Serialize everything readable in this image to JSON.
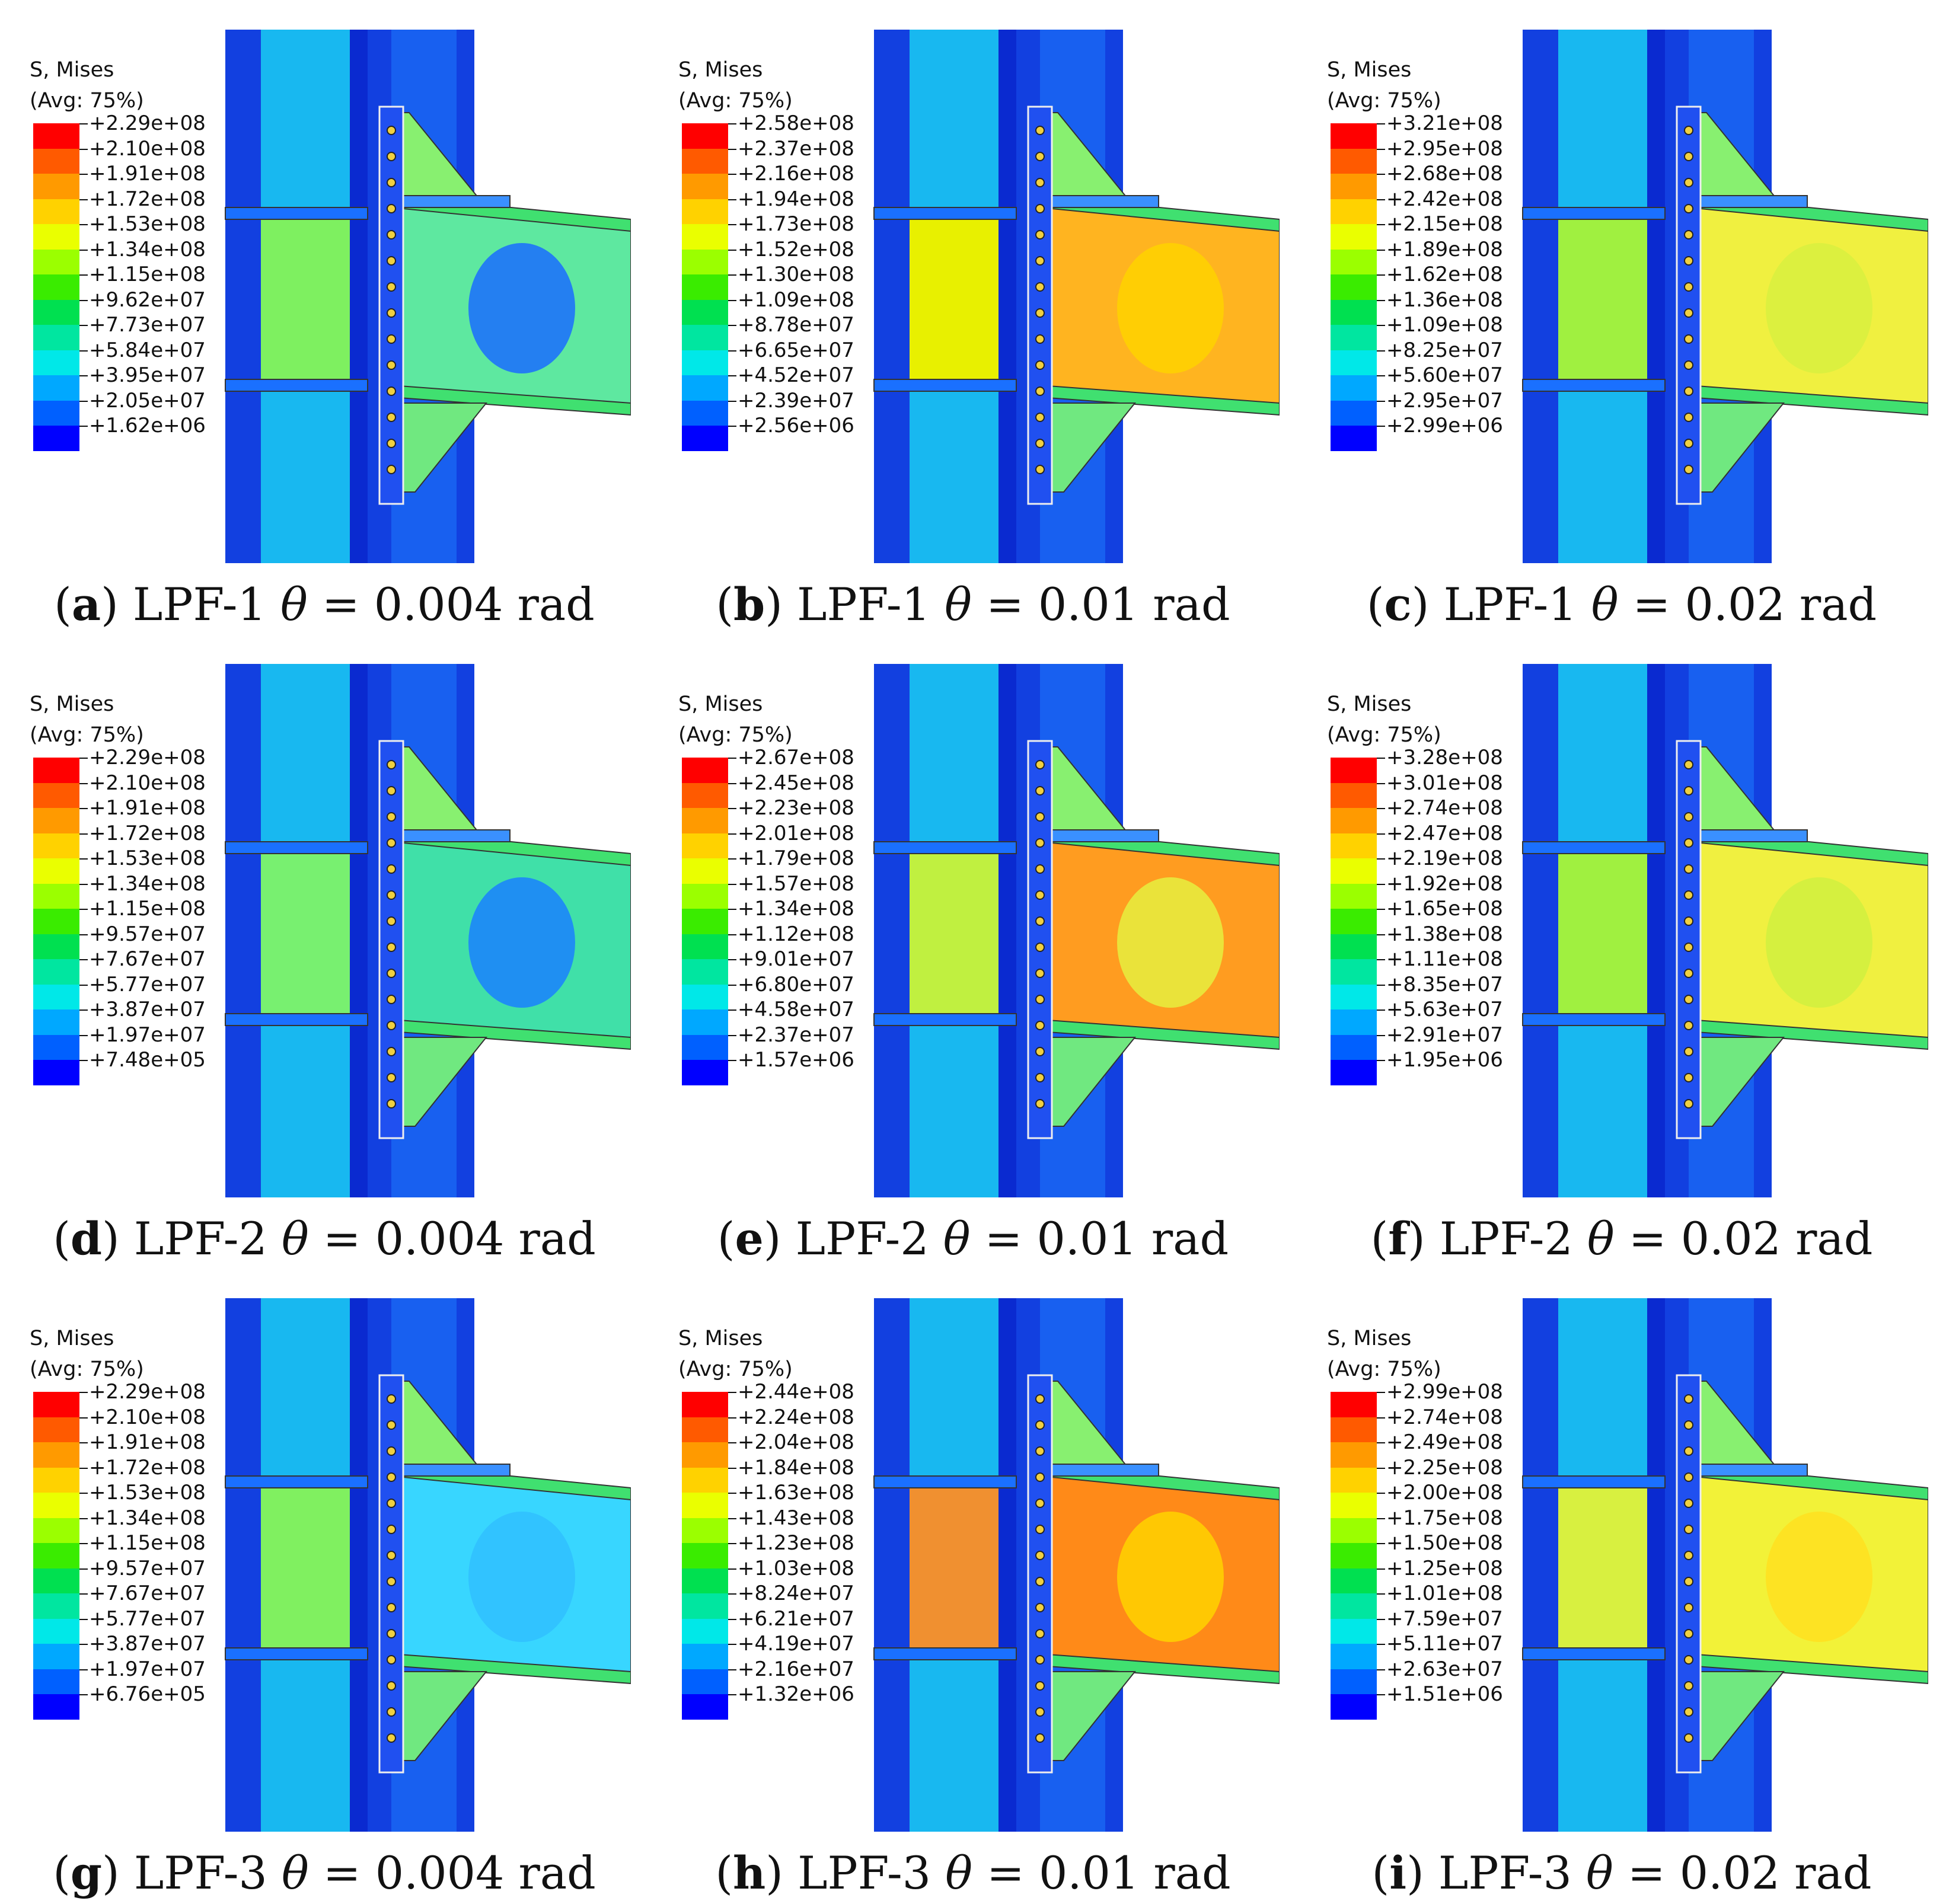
{
  "legend_title": [
    "S, Mises",
    "(Avg: 75%)"
  ],
  "legend_colors": [
    "#ff0000",
    "#ff5a00",
    "#ff9a00",
    "#ffd200",
    "#eaff00",
    "#9bff00",
    "#3aec00",
    "#00e050",
    "#00e6a0",
    "#00e8e8",
    "#00a8ff",
    "#0060ff",
    "#0000ff"
  ],
  "panels": [
    {
      "letter": "a",
      "specimen": "LPF-1",
      "theta": "0.004",
      "unit": "rad",
      "legend": [
        "+2.29e+08",
        "+2.10e+08",
        "+1.91e+08",
        "+1.72e+08",
        "+1.53e+08",
        "+1.34e+08",
        "+1.15e+08",
        "+9.62e+07",
        "+7.73e+07",
        "+5.84e+07",
        "+3.95e+07",
        "+2.05e+07",
        "+1.62e+06"
      ]
    },
    {
      "letter": "b",
      "specimen": "LPF-1",
      "theta": "0.01",
      "unit": "rad",
      "legend": [
        "+2.58e+08",
        "+2.37e+08",
        "+2.16e+08",
        "+1.94e+08",
        "+1.73e+08",
        "+1.52e+08",
        "+1.30e+08",
        "+1.09e+08",
        "+8.78e+07",
        "+6.65e+07",
        "+4.52e+07",
        "+2.39e+07",
        "+2.56e+06"
      ]
    },
    {
      "letter": "c",
      "specimen": "LPF-1",
      "theta": "0.02",
      "unit": "rad",
      "legend": [
        "+3.21e+08",
        "+2.95e+08",
        "+2.68e+08",
        "+2.42e+08",
        "+2.15e+08",
        "+1.89e+08",
        "+1.62e+08",
        "+1.36e+08",
        "+1.09e+08",
        "+8.25e+07",
        "+5.60e+07",
        "+2.95e+07",
        "+2.99e+06"
      ]
    },
    {
      "letter": "d",
      "specimen": "LPF-2",
      "theta": "0.004",
      "unit": "rad",
      "legend": [
        "+2.29e+08",
        "+2.10e+08",
        "+1.91e+08",
        "+1.72e+08",
        "+1.53e+08",
        "+1.34e+08",
        "+1.15e+08",
        "+9.57e+07",
        "+7.67e+07",
        "+5.77e+07",
        "+3.87e+07",
        "+1.97e+07",
        "+7.48e+05"
      ]
    },
    {
      "letter": "e",
      "specimen": "LPF-2",
      "theta": "0.01",
      "unit": "rad",
      "legend": [
        "+2.67e+08",
        "+2.45e+08",
        "+2.23e+08",
        "+2.01e+08",
        "+1.79e+08",
        "+1.57e+08",
        "+1.34e+08",
        "+1.12e+08",
        "+9.01e+07",
        "+6.80e+07",
        "+4.58e+07",
        "+2.37e+07",
        "+1.57e+06"
      ]
    },
    {
      "letter": "f",
      "specimen": "LPF-2",
      "theta": "0.02",
      "unit": "rad",
      "legend": [
        "+3.28e+08",
        "+3.01e+08",
        "+2.74e+08",
        "+2.47e+08",
        "+2.19e+08",
        "+1.92e+08",
        "+1.65e+08",
        "+1.38e+08",
        "+1.11e+08",
        "+8.35e+07",
        "+5.63e+07",
        "+2.91e+07",
        "+1.95e+06"
      ]
    },
    {
      "letter": "g",
      "specimen": "LPF-3",
      "theta": "0.004",
      "unit": "rad",
      "legend": [
        "+2.29e+08",
        "+2.10e+08",
        "+1.91e+08",
        "+1.72e+08",
        "+1.53e+08",
        "+1.34e+08",
        "+1.15e+08",
        "+9.57e+07",
        "+7.67e+07",
        "+5.77e+07",
        "+3.87e+07",
        "+1.97e+07",
        "+6.76e+05"
      ]
    },
    {
      "letter": "h",
      "specimen": "LPF-3",
      "theta": "0.01",
      "unit": "rad",
      "legend": [
        "+2.44e+08",
        "+2.24e+08",
        "+2.04e+08",
        "+1.84e+08",
        "+1.63e+08",
        "+1.43e+08",
        "+1.23e+08",
        "+1.03e+08",
        "+8.24e+07",
        "+6.21e+07",
        "+4.19e+07",
        "+2.16e+07",
        "+1.32e+06"
      ]
    },
    {
      "letter": "i",
      "specimen": "LPF-3",
      "theta": "0.02",
      "unit": "rad",
      "legend": [
        "+2.99e+08",
        "+2.74e+08",
        "+2.49e+08",
        "+2.25e+08",
        "+2.00e+08",
        "+1.75e+08",
        "+1.50e+08",
        "+1.25e+08",
        "+1.01e+08",
        "+7.59e+07",
        "+5.11e+07",
        "+2.63e+07",
        "+1.51e+06"
      ]
    }
  ]
}
